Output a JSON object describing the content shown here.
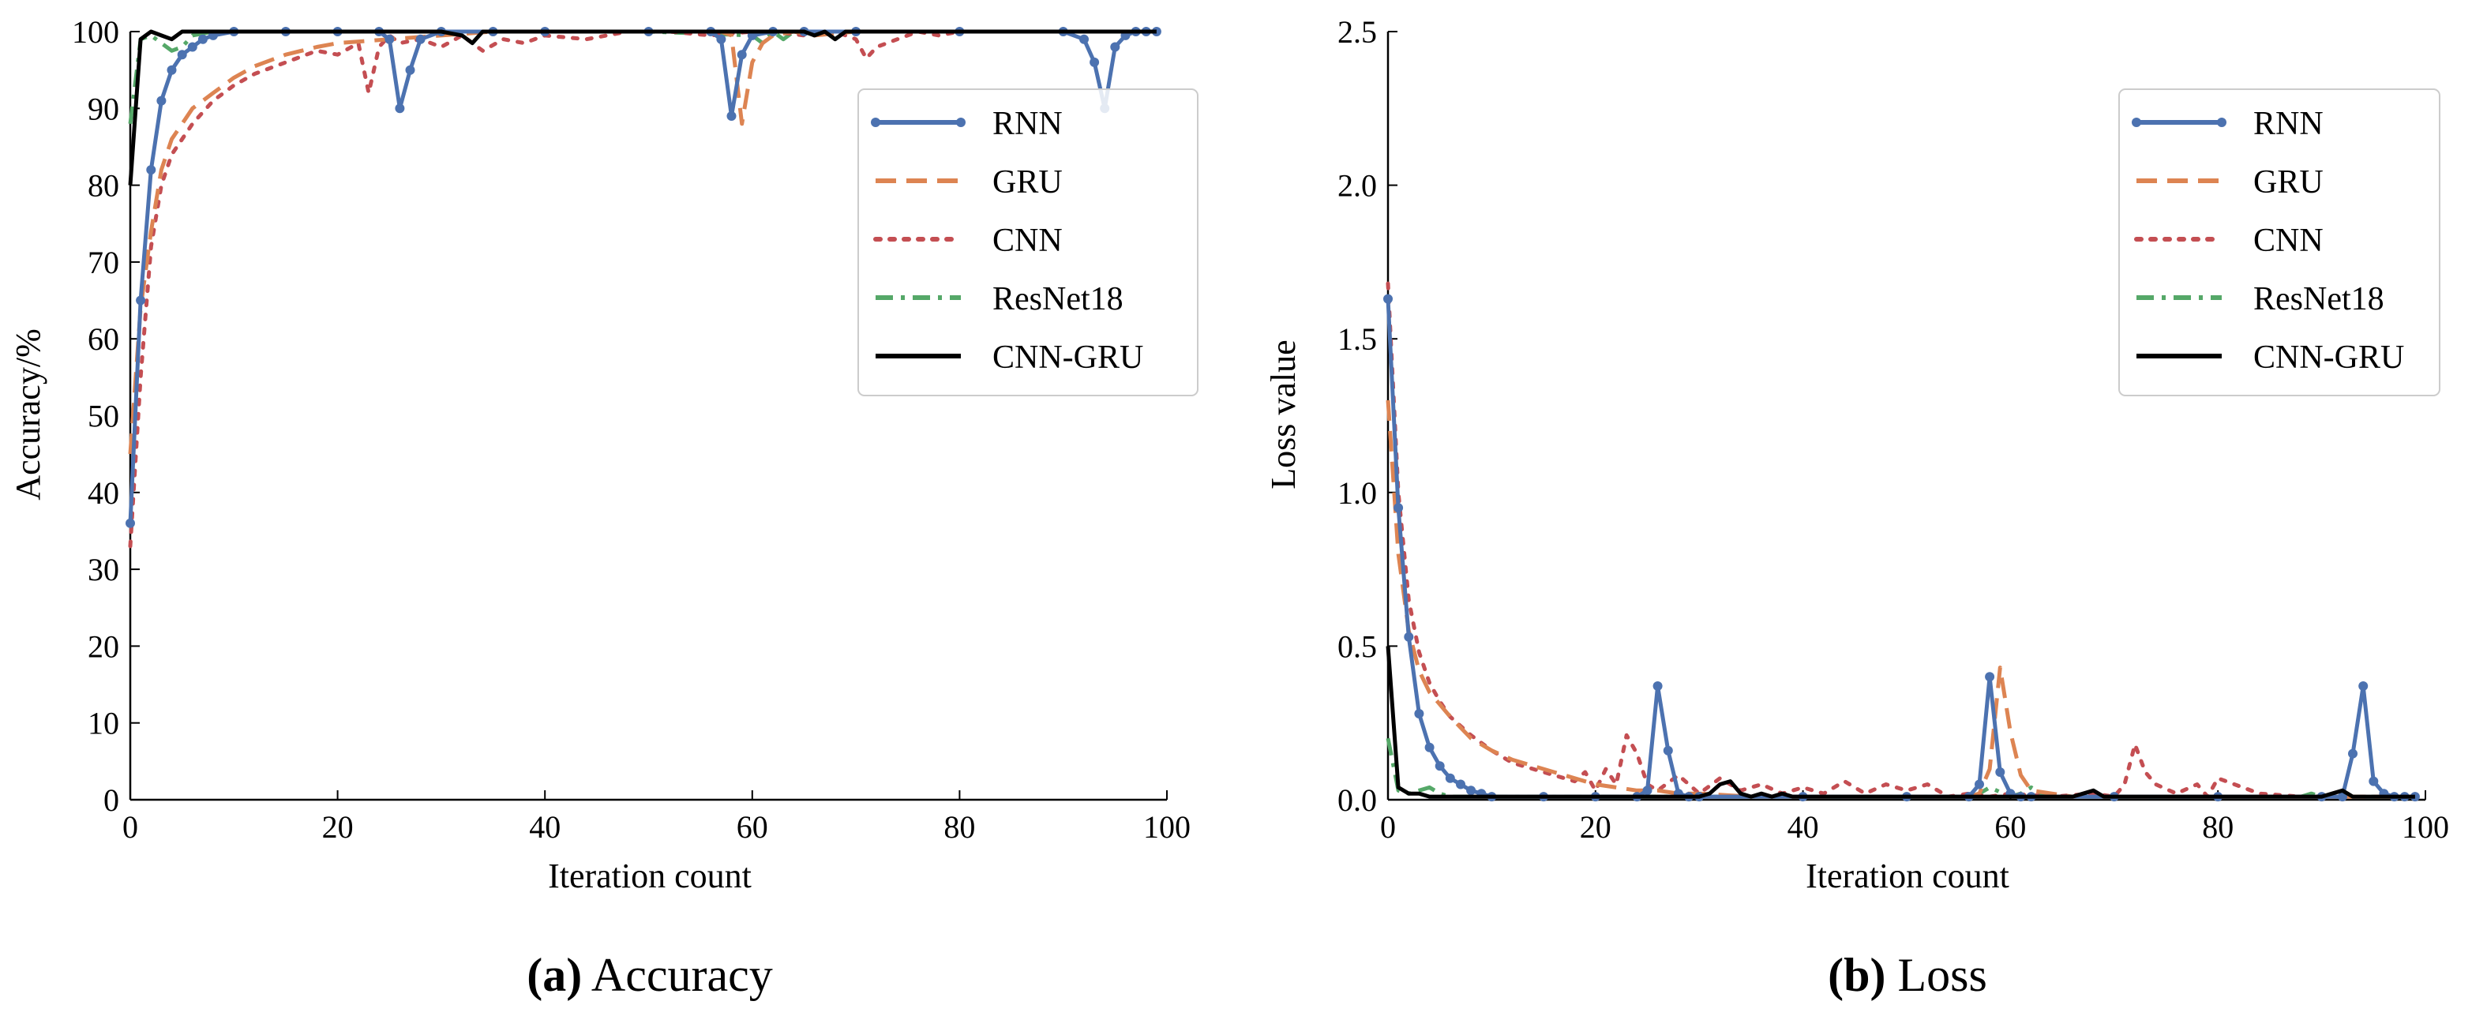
{
  "colors": {
    "RNN": "#4C72B0",
    "GRU": "#DD8452",
    "CNN": "#C44E52",
    "ResNet18": "#55A868",
    "CNN-GRU": "#000000"
  },
  "chart_data": [
    {
      "id": "accuracy",
      "type": "line",
      "caption_letter": "(a)",
      "caption_rest": " Accuracy",
      "xlabel": "Iteration count",
      "ylabel": "Accuracy/%",
      "xlim": [
        0,
        100
      ],
      "ylim": [
        0,
        100
      ],
      "xticks": [
        0,
        20,
        40,
        60,
        80,
        100
      ],
      "yticks": [
        0,
        10,
        20,
        30,
        40,
        50,
        60,
        70,
        80,
        90,
        100
      ],
      "legend_position": "upper-right",
      "series": [
        {
          "name": "RNN",
          "style": "solid-marker",
          "x": [
            0,
            1,
            2,
            3,
            4,
            5,
            6,
            7,
            8,
            10,
            15,
            20,
            24,
            25,
            26,
            27,
            28,
            30,
            35,
            40,
            50,
            56,
            57,
            58,
            59,
            60,
            62,
            65,
            70,
            80,
            90,
            92,
            93,
            94,
            95,
            96,
            97,
            98,
            99
          ],
          "y": [
            36,
            65,
            82,
            91,
            95,
            97,
            98,
            99,
            99.5,
            100,
            100,
            100,
            100,
            99,
            90,
            95,
            99,
            100,
            100,
            100,
            100,
            100,
            99,
            89,
            97,
            99.5,
            100,
            100,
            100,
            100,
            100,
            99,
            96,
            90,
            98,
            99.5,
            100,
            100,
            100
          ]
        },
        {
          "name": "GRU",
          "style": "dashed",
          "x": [
            0,
            1,
            2,
            3,
            4,
            5,
            6,
            8,
            10,
            12,
            15,
            18,
            20,
            25,
            30,
            35,
            40,
            50,
            57,
            58,
            59,
            60,
            61,
            62,
            64,
            66,
            70,
            80,
            90,
            99
          ],
          "y": [
            45,
            64,
            74,
            82,
            86,
            88,
            90,
            92,
            94,
            95.5,
            97,
            98,
            98.5,
            99,
            99.5,
            100,
            100,
            100,
            100,
            99.5,
            88,
            96,
            98.5,
            99.5,
            100,
            99.5,
            100,
            100,
            100,
            100
          ]
        },
        {
          "name": "CNN",
          "style": "dotted",
          "x": [
            0,
            1,
            2,
            3,
            4,
            5,
            6,
            8,
            10,
            12,
            14,
            16,
            18,
            20,
            22,
            23,
            24,
            25,
            26,
            28,
            30,
            32,
            34,
            36,
            38,
            40,
            44,
            48,
            52,
            56,
            60,
            62,
            65,
            68,
            70,
            71,
            72,
            74,
            76,
            78,
            80,
            84,
            88,
            92,
            96,
            99
          ],
          "y": [
            33,
            55,
            72,
            80,
            84,
            86,
            88,
            91,
            93,
            94.5,
            95.5,
            96.5,
            97.5,
            97,
            98.5,
            92,
            98,
            99.5,
            98.5,
            99,
            98,
            99.5,
            97.5,
            99,
            98.5,
            99.5,
            99,
            100,
            100,
            99.5,
            100,
            100,
            99.5,
            100,
            99,
            96.5,
            98,
            99,
            100,
            99.5,
            100,
            100,
            100,
            100,
            100,
            100
          ]
        },
        {
          "name": "ResNet18",
          "style": "dashdot",
          "x": [
            0,
            1,
            2,
            3,
            4,
            5,
            6,
            8,
            10,
            20,
            30,
            40,
            50,
            60,
            61,
            62,
            63,
            64,
            65,
            70,
            80,
            90,
            99
          ],
          "y": [
            88,
            99,
            99.5,
            98.5,
            97.5,
            98,
            99.5,
            100,
            100,
            100,
            100,
            100,
            100,
            99.5,
            98.5,
            100,
            99,
            100,
            100,
            100,
            100,
            100,
            100
          ]
        },
        {
          "name": "CNN-GRU",
          "style": "solid",
          "x": [
            0,
            1,
            2,
            3,
            4,
            5,
            6,
            8,
            10,
            20,
            30,
            32,
            33,
            34,
            35,
            40,
            50,
            60,
            65,
            66,
            67,
            68,
            69,
            70,
            80,
            90,
            99
          ],
          "y": [
            80,
            99,
            100,
            99.5,
            99,
            100,
            100,
            100,
            100,
            100,
            100,
            99.5,
            98.5,
            100,
            100,
            100,
            100,
            100,
            100,
            99.5,
            100,
            99,
            100,
            100,
            100,
            100,
            100
          ]
        }
      ]
    },
    {
      "id": "loss",
      "type": "line",
      "caption_letter": "(b)",
      "caption_rest": " Loss",
      "xlabel": "Iteration count",
      "ylabel": "Loss value",
      "xlim": [
        0,
        100
      ],
      "ylim": [
        0,
        2.5
      ],
      "xticks": [
        0,
        20,
        40,
        60,
        80,
        100
      ],
      "yticks": [
        0.0,
        0.5,
        1.0,
        1.5,
        2.0,
        2.5
      ],
      "ytick_labels": [
        "0.0",
        "0.5",
        "1.0",
        "1.5",
        "2.0",
        "2.5"
      ],
      "legend_position": "upper-right",
      "series": [
        {
          "name": "RNN",
          "style": "solid-marker",
          "x": [
            0,
            1,
            2,
            3,
            4,
            5,
            6,
            7,
            8,
            9,
            10,
            15,
            20,
            24,
            25,
            26,
            27,
            28,
            29,
            30,
            40,
            50,
            56,
            57,
            58,
            59,
            60,
            61,
            62,
            70,
            80,
            90,
            92,
            93,
            94,
            95,
            96,
            97,
            98,
            99
          ],
          "y": [
            1.63,
            0.95,
            0.53,
            0.28,
            0.17,
            0.11,
            0.07,
            0.05,
            0.03,
            0.02,
            0.01,
            0.01,
            0.01,
            0.01,
            0.03,
            0.37,
            0.16,
            0.02,
            0.01,
            0.01,
            0.01,
            0.01,
            0.01,
            0.05,
            0.4,
            0.09,
            0.02,
            0.01,
            0.01,
            0.01,
            0.01,
            0.01,
            0.01,
            0.15,
            0.37,
            0.06,
            0.02,
            0.01,
            0.01,
            0.01
          ]
        },
        {
          "name": "GRU",
          "style": "dashed",
          "x": [
            0,
            1,
            2,
            3,
            4,
            5,
            6,
            8,
            10,
            12,
            14,
            16,
            18,
            20,
            22,
            24,
            26,
            28,
            30,
            35,
            40,
            50,
            56,
            57,
            58,
            59,
            60,
            61,
            62,
            64,
            66,
            70,
            80,
            90,
            99
          ],
          "y": [
            1.3,
            0.8,
            0.55,
            0.42,
            0.35,
            0.31,
            0.27,
            0.2,
            0.16,
            0.13,
            0.11,
            0.09,
            0.07,
            0.05,
            0.04,
            0.03,
            0.03,
            0.02,
            0.02,
            0.01,
            0.01,
            0.01,
            0.01,
            0.02,
            0.1,
            0.43,
            0.22,
            0.08,
            0.03,
            0.02,
            0.01,
            0.01,
            0.01,
            0.01,
            0.01
          ]
        },
        {
          "name": "CNN",
          "style": "dotted",
          "x": [
            0,
            1,
            2,
            3,
            4,
            5,
            6,
            8,
            10,
            12,
            14,
            16,
            18,
            19,
            20,
            21,
            22,
            23,
            24,
            25,
            26,
            28,
            30,
            32,
            34,
            36,
            38,
            40,
            42,
            44,
            46,
            48,
            50,
            52,
            54,
            56,
            58,
            60,
            64,
            68,
            70,
            71,
            72,
            73,
            74,
            76,
            78,
            79,
            80,
            84,
            88,
            92,
            96,
            99
          ],
          "y": [
            1.68,
            1.0,
            0.65,
            0.48,
            0.38,
            0.32,
            0.27,
            0.21,
            0.16,
            0.12,
            0.1,
            0.08,
            0.06,
            0.09,
            0.03,
            0.1,
            0.05,
            0.21,
            0.15,
            0.05,
            0.03,
            0.08,
            0.02,
            0.07,
            0.03,
            0.05,
            0.02,
            0.04,
            0.02,
            0.06,
            0.02,
            0.05,
            0.03,
            0.05,
            0.01,
            0.02,
            0.01,
            0.02,
            0.01,
            0.02,
            0.01,
            0.05,
            0.18,
            0.09,
            0.05,
            0.02,
            0.05,
            0.01,
            0.07,
            0.02,
            0.01,
            0.01,
            0.01,
            0.01
          ]
        },
        {
          "name": "ResNet18",
          "style": "dashdot",
          "x": [
            0,
            1,
            2,
            3,
            4,
            5,
            6,
            8,
            10,
            15,
            20,
            30,
            40,
            50,
            56,
            57,
            58,
            60,
            61,
            62,
            63,
            64,
            66,
            70,
            80,
            88,
            89,
            90,
            92,
            94,
            99
          ],
          "y": [
            0.2,
            0.03,
            0.02,
            0.03,
            0.04,
            0.02,
            0.01,
            0.01,
            0.01,
            0.01,
            0.01,
            0.01,
            0.01,
            0.01,
            0.01,
            0.02,
            0.04,
            0.01,
            0.02,
            0.04,
            0.02,
            0.01,
            0.01,
            0.01,
            0.01,
            0.01,
            0.02,
            0.01,
            0.01,
            0.01,
            0.01
          ]
        },
        {
          "name": "CNN-GRU",
          "style": "solid",
          "x": [
            0,
            1,
            2,
            3,
            4,
            5,
            6,
            7,
            8,
            10,
            20,
            30,
            31,
            32,
            33,
            34,
            35,
            36,
            37,
            38,
            39,
            40,
            50,
            60,
            66,
            67,
            68,
            69,
            70,
            80,
            90,
            91,
            92,
            93,
            99
          ],
          "y": [
            0.5,
            0.04,
            0.02,
            0.02,
            0.01,
            0.01,
            0.01,
            0.01,
            0.01,
            0.01,
            0.01,
            0.01,
            0.02,
            0.05,
            0.06,
            0.02,
            0.01,
            0.02,
            0.01,
            0.02,
            0.01,
            0.01,
            0.01,
            0.01,
            0.01,
            0.02,
            0.03,
            0.01,
            0.01,
            0.01,
            0.01,
            0.02,
            0.03,
            0.01,
            0.01
          ]
        }
      ]
    }
  ]
}
